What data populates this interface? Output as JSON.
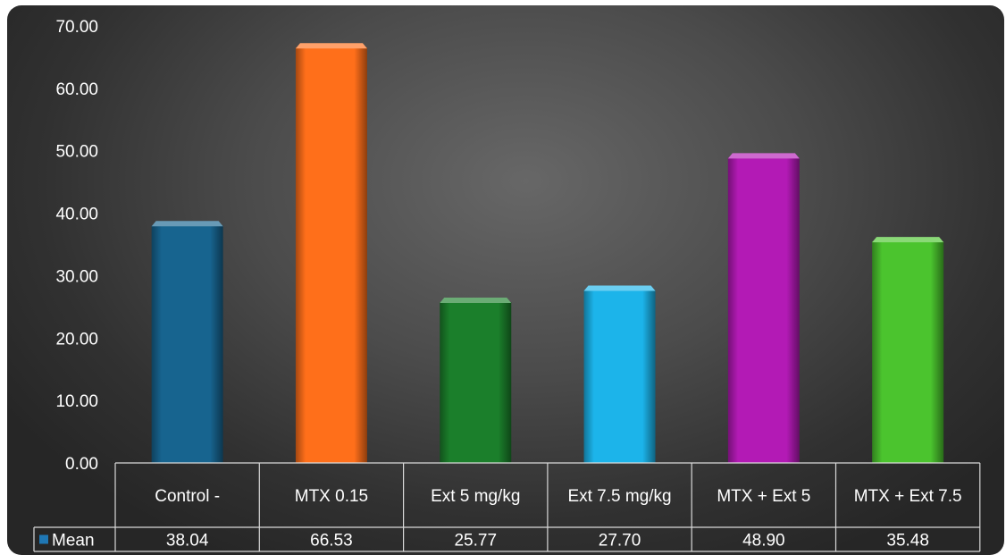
{
  "chart_data": {
    "type": "bar",
    "categories": [
      "Control -",
      "MTX 0.15",
      "Ext 5 mg/kg",
      "Ext 7.5 mg/kg",
      "MTX + Ext 5",
      "MTX + Ext 7.5"
    ],
    "series": [
      {
        "name": "Mean",
        "values": [
          38.04,
          66.53,
          25.77,
          27.7,
          48.9,
          35.48
        ],
        "value_labels": [
          "38.04",
          "66.53",
          "25.77",
          "27.70",
          "48.90",
          "35.48"
        ]
      }
    ],
    "yticks": [
      "0.00",
      "10.00",
      "20.00",
      "30.00",
      "40.00",
      "50.00",
      "60.00",
      "70.00"
    ],
    "ylim": [
      0,
      70
    ],
    "grid": false,
    "legend": "data-table-left",
    "bar_colors": [
      "#17648f",
      "#ff6f1a",
      "#1b7f2b",
      "#1cb4ea",
      "#b31ab5",
      "#4bc42e"
    ],
    "legend_color": "#1f77b4",
    "data_table": true
  }
}
